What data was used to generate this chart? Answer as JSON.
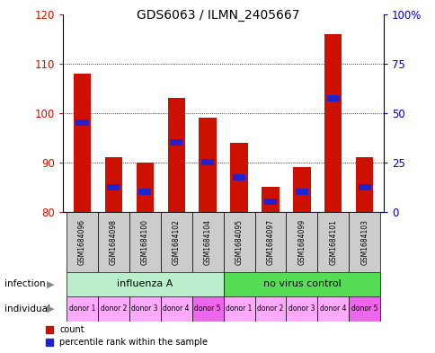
{
  "title": "GDS6063 / ILMN_2405667",
  "samples": [
    "GSM1684096",
    "GSM1684098",
    "GSM1684100",
    "GSM1684102",
    "GSM1684104",
    "GSM1684095",
    "GSM1684097",
    "GSM1684099",
    "GSM1684101",
    "GSM1684103"
  ],
  "bar_base": 80,
  "red_tops": [
    108,
    91,
    90,
    103,
    99,
    94,
    85,
    89,
    116,
    91
  ],
  "blue_values": [
    98,
    85,
    84,
    94,
    90,
    87,
    82,
    84,
    103,
    85
  ],
  "ylim_left": [
    80,
    120
  ],
  "ylim_right": [
    0,
    100
  ],
  "yticks_left": [
    80,
    90,
    100,
    110,
    120
  ],
  "yticks_right": [
    0,
    25,
    50,
    75,
    100
  ],
  "ytick_labels_right": [
    "0",
    "25",
    "50",
    "75",
    "100%"
  ],
  "infection_groups": [
    {
      "label": "influenza A",
      "start": 0,
      "end": 5
    },
    {
      "label": "no virus control",
      "start": 5,
      "end": 10
    }
  ],
  "infection_colors": [
    "#BBEECC",
    "#55DD55"
  ],
  "individual_labels": [
    "donor 1",
    "donor 2",
    "donor 3",
    "donor 4",
    "donor 5",
    "donor 1",
    "donor 2",
    "donor 3",
    "donor 4",
    "donor 5"
  ],
  "individual_colors": [
    "#FFAAFF",
    "#FFAAFF",
    "#FFAAFF",
    "#FFAAFF",
    "#EE66EE",
    "#FFAAFF",
    "#FFAAFF",
    "#FFAAFF",
    "#FFAAFF",
    "#EE66EE"
  ],
  "bar_color_red": "#CC1100",
  "bar_color_blue": "#2222CC",
  "left_label_color": "#CC1100",
  "right_label_color": "#0000BB",
  "grid_color": "#000000",
  "bar_width": 0.55,
  "sample_bg_color": "#CCCCCC",
  "legend_count": "count",
  "legend_pct": "percentile rank within the sample"
}
